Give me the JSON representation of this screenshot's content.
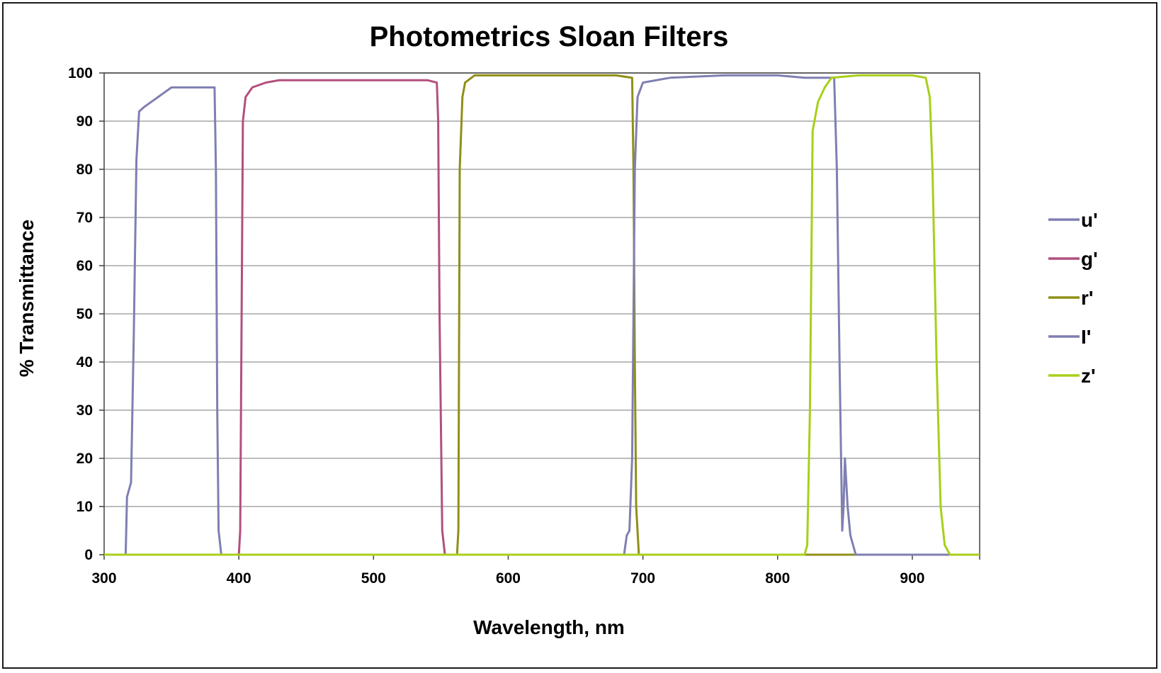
{
  "chart_data": {
    "type": "line",
    "title": "Photometrics Sloan Filters",
    "xlabel": "Wavelength, nm",
    "ylabel": "% Transmittance",
    "xlim": [
      300,
      950
    ],
    "ylim": [
      0,
      100
    ],
    "x_ticks": [
      300,
      400,
      500,
      600,
      700,
      800,
      900
    ],
    "y_ticks": [
      0,
      10,
      20,
      30,
      40,
      50,
      60,
      70,
      80,
      90,
      100
    ],
    "grid": "horizontal",
    "legend_position": "right",
    "series": [
      {
        "name": "u'",
        "color": "#7f7fb2",
        "points": [
          [
            300,
            0
          ],
          [
            316,
            0
          ],
          [
            317,
            12
          ],
          [
            320,
            15
          ],
          [
            322,
            45
          ],
          [
            324,
            82
          ],
          [
            326,
            92
          ],
          [
            330,
            93
          ],
          [
            335,
            94
          ],
          [
            340,
            95
          ],
          [
            345,
            96
          ],
          [
            350,
            97
          ],
          [
            360,
            97
          ],
          [
            370,
            97
          ],
          [
            382,
            97
          ],
          [
            383,
            80
          ],
          [
            384,
            30
          ],
          [
            385,
            5
          ],
          [
            387,
            0
          ],
          [
            950,
            0
          ]
        ]
      },
      {
        "name": "g'",
        "color": "#b24f7d",
        "points": [
          [
            300,
            0
          ],
          [
            400,
            0
          ],
          [
            401,
            5
          ],
          [
            403,
            90
          ],
          [
            405,
            95
          ],
          [
            410,
            97
          ],
          [
            420,
            98
          ],
          [
            430,
            98.5
          ],
          [
            440,
            98.5
          ],
          [
            460,
            98.5
          ],
          [
            480,
            98.5
          ],
          [
            500,
            98.5
          ],
          [
            520,
            98.5
          ],
          [
            540,
            98.5
          ],
          [
            547,
            98
          ],
          [
            548,
            90
          ],
          [
            549,
            50
          ],
          [
            551,
            5
          ],
          [
            553,
            0
          ],
          [
            950,
            0
          ]
        ]
      },
      {
        "name": "r'",
        "color": "#8f8f18",
        "points": [
          [
            300,
            0
          ],
          [
            562,
            0
          ],
          [
            563,
            5
          ],
          [
            564,
            80
          ],
          [
            566,
            95
          ],
          [
            568,
            98
          ],
          [
            575,
            99.5
          ],
          [
            600,
            99.5
          ],
          [
            640,
            99.5
          ],
          [
            680,
            99.5
          ],
          [
            692,
            99
          ],
          [
            693,
            80
          ],
          [
            694,
            40
          ],
          [
            695,
            10
          ],
          [
            697,
            0
          ],
          [
            950,
            0
          ]
        ]
      },
      {
        "name": "I'",
        "color": "#7f7fb2",
        "points": [
          [
            300,
            0
          ],
          [
            686,
            0
          ],
          [
            688,
            4
          ],
          [
            690,
            5
          ],
          [
            692,
            20
          ],
          [
            694,
            80
          ],
          [
            696,
            95
          ],
          [
            700,
            98
          ],
          [
            720,
            99
          ],
          [
            760,
            99.5
          ],
          [
            800,
            99.5
          ],
          [
            820,
            99
          ],
          [
            838,
            99
          ],
          [
            842,
            99
          ],
          [
            844,
            80
          ],
          [
            846,
            40
          ],
          [
            848,
            5
          ],
          [
            849,
            10
          ],
          [
            850,
            20
          ],
          [
            852,
            10
          ],
          [
            854,
            4
          ],
          [
            858,
            0
          ],
          [
            950,
            0
          ]
        ]
      },
      {
        "name": "z'",
        "color": "#a8cf1a",
        "points": [
          [
            300,
            0
          ],
          [
            820,
            0
          ],
          [
            822,
            2
          ],
          [
            824,
            30
          ],
          [
            826,
            88
          ],
          [
            830,
            94
          ],
          [
            835,
            97
          ],
          [
            840,
            99
          ],
          [
            860,
            99.5
          ],
          [
            880,
            99.5
          ],
          [
            900,
            99.5
          ],
          [
            910,
            99
          ],
          [
            913,
            95
          ],
          [
            915,
            80
          ],
          [
            918,
            40
          ],
          [
            921,
            10
          ],
          [
            924,
            2
          ],
          [
            928,
            0
          ],
          [
            950,
            0
          ]
        ]
      }
    ]
  }
}
